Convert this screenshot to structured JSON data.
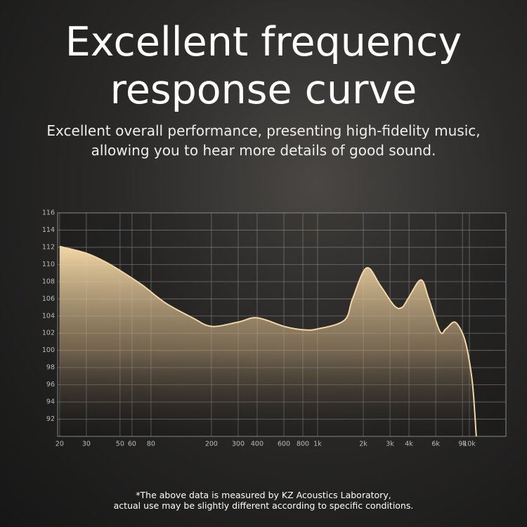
{
  "chart_data": {
    "type": "area",
    "title": "Excellent frequency response curve",
    "subtitle": [
      "Excellent overall performance, presenting high-fidelity music,",
      "allowing you to hear more details of good sound."
    ],
    "footnote": [
      "*The above data is measured by KZ Acoustics Laboratory,",
      "actual use may be slightly different according to specific conditions."
    ],
    "x": [
      20,
      30,
      40,
      50,
      70,
      100,
      150,
      200,
      300,
      400,
      600,
      800,
      1000,
      1500,
      1700,
      2100,
      2600,
      3200,
      3600,
      4000,
      4800,
      5400,
      6400,
      7000,
      8000,
      9000,
      9700,
      10500,
      11100
    ],
    "values": [
      112.1,
      111.3,
      110.3,
      109.3,
      107.6,
      105.5,
      103.8,
      102.8,
      103.3,
      103.8,
      102.8,
      102.4,
      102.5,
      103.5,
      106,
      109.6,
      107.5,
      105.2,
      105,
      106.2,
      108.2,
      106,
      102.2,
      102.5,
      103.3,
      102,
      100,
      96,
      90
    ],
    "color": "#f2d7a6",
    "xscale": "log",
    "xlim": [
      19.4,
      17400
    ],
    "ylim": [
      90,
      116
    ],
    "xticks": [
      20,
      30,
      50,
      60,
      80,
      200,
      300,
      400,
      600,
      800,
      {
        "value": 1000,
        "label": "1k"
      },
      {
        "value": 2000,
        "label": "2k"
      },
      {
        "value": 3000,
        "label": "3k"
      },
      {
        "value": 4000,
        "label": "4k"
      },
      {
        "value": 6000,
        "label": "6k"
      },
      {
        "value": 9000,
        "label": "9k"
      },
      {
        "value": 10000,
        "label": "10k"
      }
    ],
    "yticks": [
      92,
      94,
      96,
      98,
      100,
      102,
      104,
      106,
      108,
      110,
      112,
      114,
      116
    ],
    "grid": true
  }
}
